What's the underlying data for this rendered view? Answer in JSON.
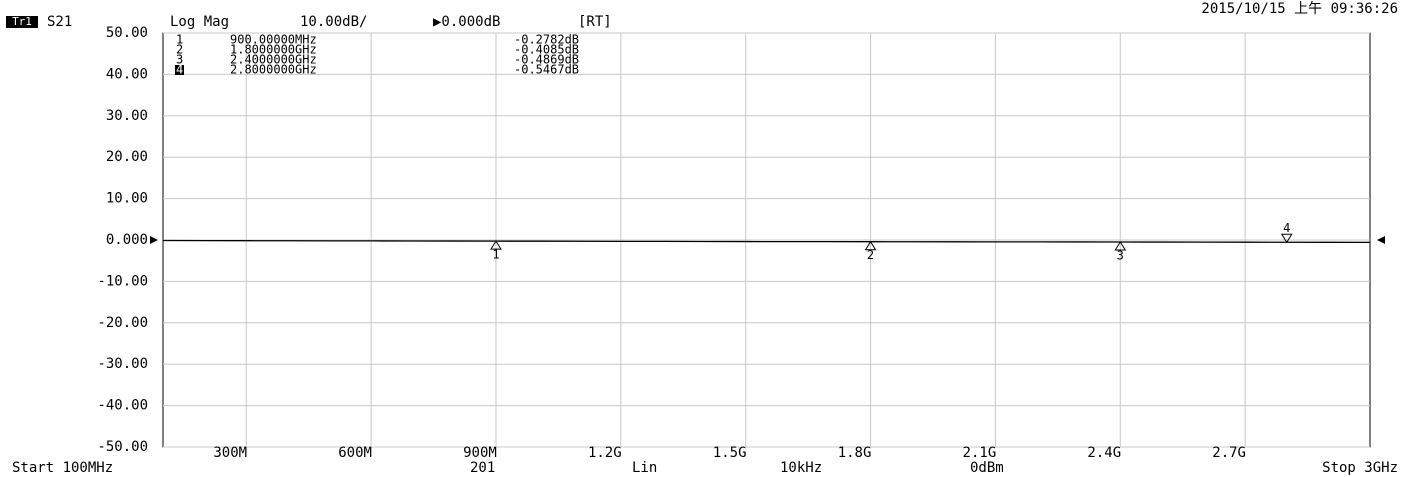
{
  "chart_data": {
    "type": "line",
    "trace": "Tr1",
    "parameter": "S21",
    "format": "Log Mag",
    "scale": "10.00dB/",
    "reference": "▶0.000dB",
    "mode": "[RT]",
    "datetime": "2015/10/15 上午 09:36:26",
    "x": [
      100,
      200,
      300,
      400,
      500,
      600,
      700,
      800,
      900,
      1000,
      1100,
      1200,
      1300,
      1400,
      1500,
      1600,
      1700,
      1800,
      1900,
      2000,
      2100,
      2200,
      2300,
      2400,
      2500,
      2600,
      2700,
      2800,
      2900,
      3000
    ],
    "series": [
      {
        "name": "S21",
        "color": "#000000",
        "values": [
          -0.12,
          -0.15,
          -0.17,
          -0.19,
          -0.21,
          -0.22,
          -0.24,
          -0.26,
          -0.28,
          -0.29,
          -0.31,
          -0.33,
          -0.34,
          -0.36,
          -0.38,
          -0.39,
          -0.4,
          -0.41,
          -0.42,
          -0.44,
          -0.45,
          -0.46,
          -0.47,
          -0.49,
          -0.5,
          -0.51,
          -0.53,
          -0.55,
          -0.56,
          -0.58
        ]
      }
    ],
    "xlim": [
      100,
      3000
    ],
    "xticks": [
      {
        "value": 300,
        "label": "300M"
      },
      {
        "value": 600,
        "label": "600M"
      },
      {
        "value": 900,
        "label": "900M"
      },
      {
        "value": 1200,
        "label": "1.2G"
      },
      {
        "value": 1500,
        "label": "1.5G"
      },
      {
        "value": 1800,
        "label": "1.8G"
      },
      {
        "value": 2100,
        "label": "2.1G"
      },
      {
        "value": 2400,
        "label": "2.4G"
      },
      {
        "value": 2700,
        "label": "2.7G"
      }
    ],
    "ylim": [
      -50,
      50
    ],
    "yticks": [
      {
        "value": 50,
        "label": "50.00"
      },
      {
        "value": 40,
        "label": "40.00"
      },
      {
        "value": 30,
        "label": "30.00"
      },
      {
        "value": 20,
        "label": "20.00"
      },
      {
        "value": 10,
        "label": "10.00"
      },
      {
        "value": 0,
        "label": "0.000"
      },
      {
        "value": -10,
        "label": "-10.00"
      },
      {
        "value": -20,
        "label": "-20.00"
      },
      {
        "value": -30,
        "label": "-30.00"
      },
      {
        "value": -40,
        "label": "-40.00"
      },
      {
        "value": -50,
        "label": "-50.00"
      }
    ],
    "grid": true,
    "markers": [
      {
        "label": "1",
        "x": 900,
        "x_label": "900.00000MHz",
        "value": -0.2782,
        "value_label": "-0.2782dB"
      },
      {
        "label": "2",
        "x": 1800,
        "x_label": "1.8000000GHz",
        "value": -0.4085,
        "value_label": "-0.4085dB"
      },
      {
        "label": "3",
        "x": 2400,
        "x_label": "2.4000000GHz",
        "value": -0.4869,
        "value_label": "-0.4869dB"
      },
      {
        "label": "4",
        "x": 2800,
        "x_label": "2.8000000GHz",
        "value": -0.5467,
        "value_label": "-0.5467dB",
        "active": true
      }
    ],
    "footer": {
      "start": "Start 100MHz",
      "points": "201",
      "sweep": "Lin",
      "ifbw": "10kHz",
      "power": "0dBm",
      "stop": "Stop 3GHz"
    }
  }
}
